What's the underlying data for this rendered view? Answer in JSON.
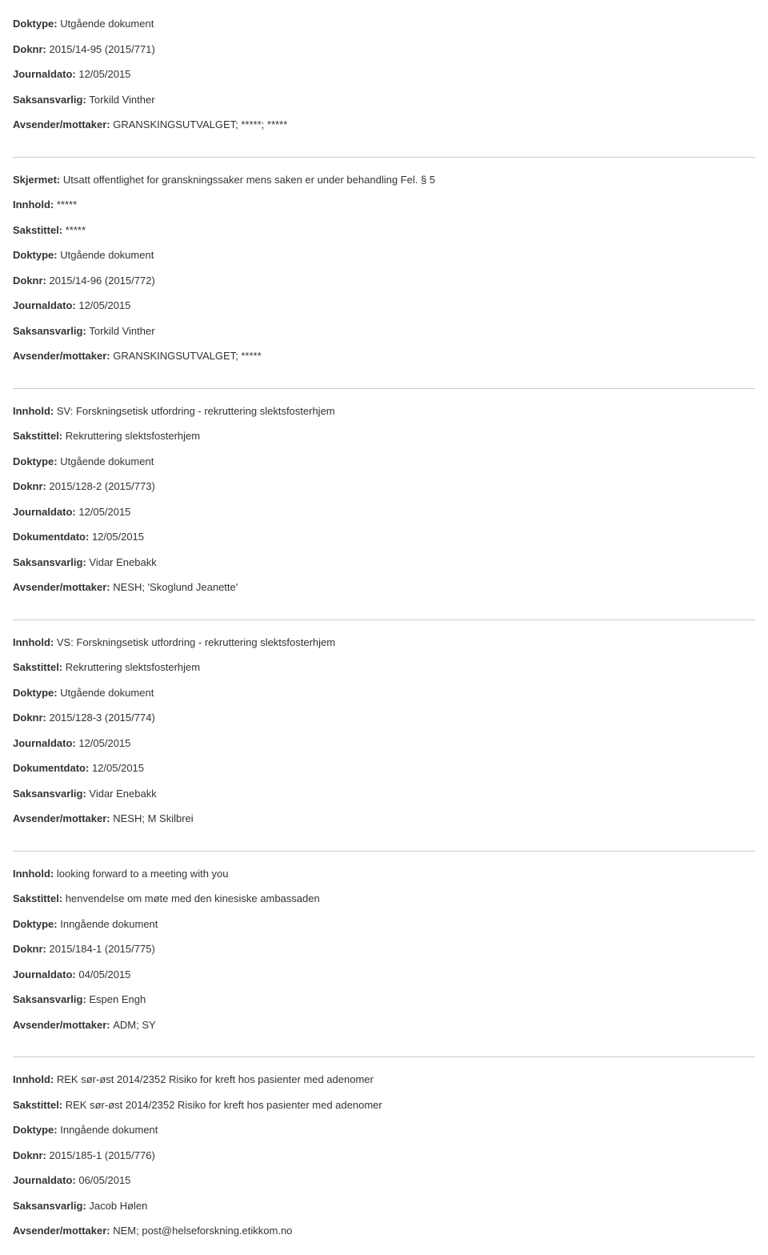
{
  "labels": {
    "doktype": "Doktype:",
    "doknr": "Doknr:",
    "journaldato": "Journaldato:",
    "saksansvarlig": "Saksansvarlig:",
    "avsender": "Avsender/mottaker:",
    "skjermet": "Skjermet:",
    "innhold": "Innhold:",
    "sakstittel": "Sakstittel:",
    "dokumentdato": "Dokumentdato:"
  },
  "entries": [
    {
      "fields": [
        {
          "label": "doktype",
          "value": "Utgående dokument"
        },
        {
          "label": "doknr",
          "value": "2015/14-95 (2015/771)"
        },
        {
          "label": "journaldato",
          "value": "12/05/2015"
        },
        {
          "label": "saksansvarlig",
          "value": "Torkild Vinther"
        },
        {
          "label": "avsender",
          "value": "GRANSKINGSUTVALGET; *****; *****"
        }
      ]
    },
    {
      "fields": [
        {
          "label": "skjermet",
          "value": "Utsatt offentlighet for granskningssaker mens saken er under behandling Fel. § 5"
        },
        {
          "label": "innhold",
          "value": "*****"
        },
        {
          "label": "sakstittel",
          "value": "*****"
        },
        {
          "label": "doktype",
          "value": "Utgående dokument"
        },
        {
          "label": "doknr",
          "value": "2015/14-96 (2015/772)"
        },
        {
          "label": "journaldato",
          "value": "12/05/2015"
        },
        {
          "label": "saksansvarlig",
          "value": "Torkild Vinther"
        },
        {
          "label": "avsender",
          "value": "GRANSKINGSUTVALGET; *****"
        }
      ]
    },
    {
      "fields": [
        {
          "label": "innhold",
          "value": "SV: Forskningsetisk utfordring - rekruttering slektsfosterhjem"
        },
        {
          "label": "sakstittel",
          "value": "Rekruttering slektsfosterhjem"
        },
        {
          "label": "doktype",
          "value": "Utgående dokument"
        },
        {
          "label": "doknr",
          "value": "2015/128-2 (2015/773)"
        },
        {
          "label": "journaldato",
          "value": "12/05/2015"
        },
        {
          "label": "dokumentdato",
          "value": "12/05/2015"
        },
        {
          "label": "saksansvarlig",
          "value": "Vidar Enebakk"
        },
        {
          "label": "avsender",
          "value": "NESH; 'Skoglund Jeanette'"
        }
      ]
    },
    {
      "fields": [
        {
          "label": "innhold",
          "value": "VS: Forskningsetisk utfordring - rekruttering slektsfosterhjem"
        },
        {
          "label": "sakstittel",
          "value": "Rekruttering slektsfosterhjem"
        },
        {
          "label": "doktype",
          "value": "Utgående dokument"
        },
        {
          "label": "doknr",
          "value": "2015/128-3 (2015/774)"
        },
        {
          "label": "journaldato",
          "value": "12/05/2015"
        },
        {
          "label": "dokumentdato",
          "value": "12/05/2015"
        },
        {
          "label": "saksansvarlig",
          "value": "Vidar Enebakk"
        },
        {
          "label": "avsender",
          "value": "NESH; M Skilbrei"
        }
      ]
    },
    {
      "fields": [
        {
          "label": "innhold",
          "value": "looking forward to a meeting with you"
        },
        {
          "label": "sakstittel",
          "value": "henvendelse om møte med den kinesiske ambassaden"
        },
        {
          "label": "doktype",
          "value": "Inngående dokument"
        },
        {
          "label": "doknr",
          "value": "2015/184-1 (2015/775)"
        },
        {
          "label": "journaldato",
          "value": "04/05/2015"
        },
        {
          "label": "saksansvarlig",
          "value": "Espen Engh"
        },
        {
          "label": "avsender",
          "value": "ADM; SY"
        }
      ]
    },
    {
      "fields": [
        {
          "label": "innhold",
          "value": "REK sør-øst 2014/2352 Risiko for kreft hos pasienter med adenomer"
        },
        {
          "label": "sakstittel",
          "value": "REK sør-øst 2014/2352 Risiko for kreft hos pasienter med adenomer"
        },
        {
          "label": "doktype",
          "value": "Inngående dokument"
        },
        {
          "label": "doknr",
          "value": "2015/185-1 (2015/776)"
        },
        {
          "label": "journaldato",
          "value": "06/05/2015"
        },
        {
          "label": "saksansvarlig",
          "value": "Jacob Hølen"
        },
        {
          "label": "avsender",
          "value": "NEM; post@helseforskning.etikkom.no"
        }
      ]
    }
  ]
}
